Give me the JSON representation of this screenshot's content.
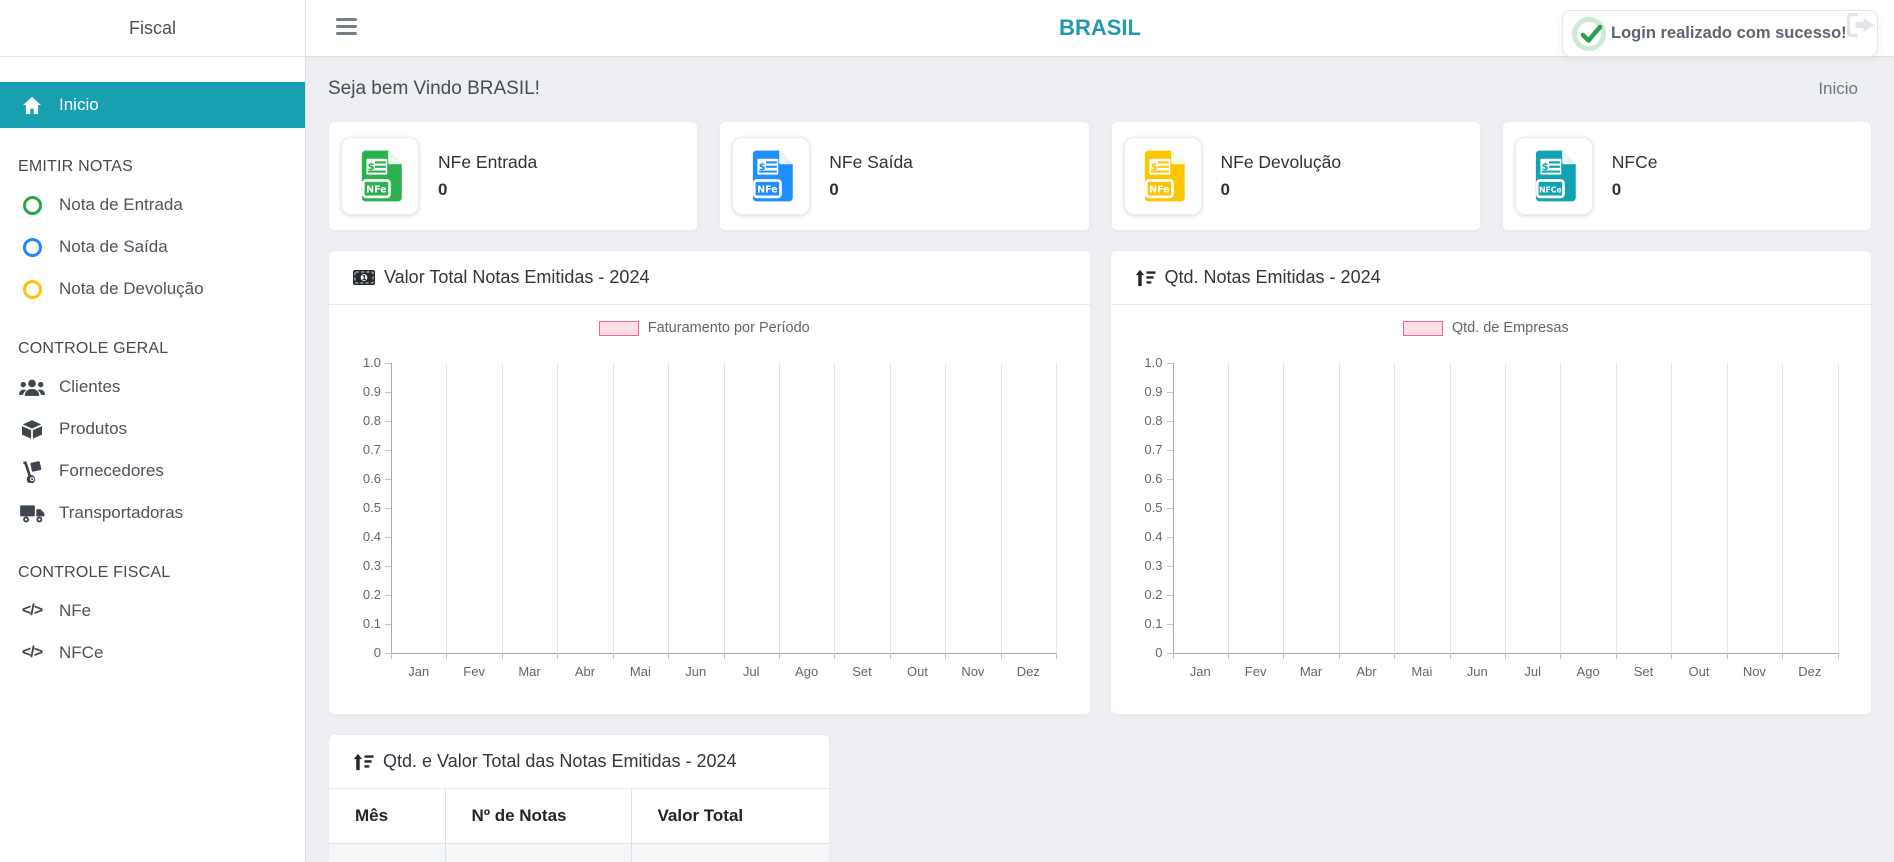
{
  "accent_color": "#189fb0",
  "sidebar": {
    "brand": "Fiscal",
    "active_item": {
      "label": "Inicio",
      "icon": "home-icon"
    },
    "sections": [
      {
        "title": "EMITIR NOTAS",
        "items": [
          {
            "label": "Nota de Entrada",
            "icon": "circle-icon",
            "color": "#28a745"
          },
          {
            "label": "Nota de Saída",
            "icon": "circle-icon",
            "color": "#1e88ff"
          },
          {
            "label": "Nota de Devolução",
            "icon": "circle-icon",
            "color": "#ffc107"
          }
        ]
      },
      {
        "title": "CONTROLE GERAL",
        "items": [
          {
            "label": "Clientes",
            "icon": "users-icon"
          },
          {
            "label": "Produtos",
            "icon": "box-icon"
          },
          {
            "label": "Fornecedores",
            "icon": "dolly-icon"
          },
          {
            "label": "Transportadoras",
            "icon": "truck-icon"
          }
        ]
      },
      {
        "title": "CONTROLE FISCAL",
        "items": [
          {
            "label": "NFe",
            "icon": "code-icon"
          },
          {
            "label": "NFCe",
            "icon": "code-icon"
          }
        ]
      }
    ]
  },
  "header": {
    "title": "BRASIL",
    "menu_icon": "hamburger-icon",
    "logout_icon": "logout-icon",
    "title_color": "#2299af"
  },
  "toast": {
    "message": "Login realizado com sucesso!",
    "icon": "check-icon",
    "check_color": "#2f9e4f"
  },
  "page": {
    "welcome": "Seja bem Vindo BRASIL!",
    "breadcrumb": "Inicio"
  },
  "stats": [
    {
      "title": "NFe Entrada",
      "value": "0",
      "badge": "NFe",
      "color": "#28b14c",
      "icon": "nfe-document-icon"
    },
    {
      "title": "NFe Saída",
      "value": "0",
      "badge": "NFe",
      "color": "#1e8fff",
      "icon": "nfe-document-icon"
    },
    {
      "title": "NFe Devolução",
      "value": "0",
      "badge": "NFe",
      "color": "#fdc502",
      "icon": "nfe-document-icon"
    },
    {
      "title": "NFCe",
      "value": "0",
      "badge": "NFCe",
      "color": "#11a3b3",
      "icon": "nfe-document-icon"
    }
  ],
  "chart_data": [
    {
      "type": "bar",
      "title": "Valor Total Notas Emitidas - 2024",
      "title_icon": "money-bill-icon",
      "legend": "Faturamento por Período",
      "legend_color": "#ff6384",
      "legend_fill": "#ffdfe7",
      "legend_position": "top",
      "categories": [
        "Jan",
        "Fev",
        "Mar",
        "Abr",
        "Mai",
        "Jun",
        "Jul",
        "Ago",
        "Set",
        "Out",
        "Nov",
        "Dez"
      ],
      "values": [
        0,
        0,
        0,
        0,
        0,
        0,
        0,
        0,
        0,
        0,
        0,
        0
      ],
      "xlabel": "",
      "ylabel": "",
      "ylim": [
        0,
        1.0
      ],
      "ytick_step": 0.1,
      "ytick_labels": [
        "0",
        "0.1",
        "0.2",
        "0.3",
        "0.4",
        "0.5",
        "0.6",
        "0.7",
        "0.8",
        "0.9",
        "1.0"
      ],
      "grid": "vertical-only"
    },
    {
      "type": "bar",
      "title": "Qtd. Notas Emitidas - 2024",
      "title_icon": "sort-amount-up-icon",
      "legend": "Qtd. de Empresas",
      "legend_color": "#ff6384",
      "legend_fill": "#ffdfe7",
      "legend_position": "top",
      "categories": [
        "Jan",
        "Fev",
        "Mar",
        "Abr",
        "Mai",
        "Jun",
        "Jul",
        "Ago",
        "Set",
        "Out",
        "Nov",
        "Dez"
      ],
      "values": [
        0,
        0,
        0,
        0,
        0,
        0,
        0,
        0,
        0,
        0,
        0,
        0
      ],
      "xlabel": "",
      "ylabel": "",
      "ylim": [
        0,
        1.0
      ],
      "ytick_step": 0.1,
      "ytick_labels": [
        "0",
        "0.1",
        "0.2",
        "0.3",
        "0.4",
        "0.5",
        "0.6",
        "0.7",
        "0.8",
        "0.9",
        "1.0"
      ],
      "grid": "vertical-only"
    }
  ],
  "table": {
    "title": "Qtd. e Valor Total das Notas Emitidas - 2024",
    "title_icon": "sort-amount-up-icon",
    "columns": [
      "Mês",
      "Nº de Notas",
      "Valor Total"
    ],
    "rows": [
      [
        "",
        "",
        ""
      ]
    ]
  }
}
